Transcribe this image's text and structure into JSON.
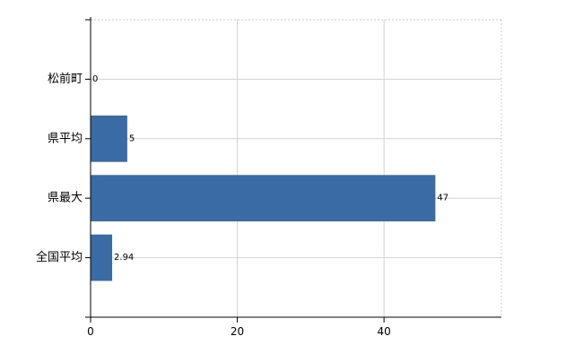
{
  "chart_data": {
    "type": "bar",
    "orientation": "horizontal",
    "categories": [
      "松前町",
      "県平均",
      "県最大",
      "全国平均"
    ],
    "values": [
      0,
      5,
      47,
      2.94
    ],
    "data_labels": [
      "0",
      "5",
      "47",
      "2.94"
    ],
    "title": "",
    "xlabel": "",
    "ylabel": "",
    "xlim": [
      0,
      56
    ],
    "xticks": [
      0,
      20,
      40
    ],
    "grid": true,
    "legend": "none",
    "bar_color": "#3a6ba5"
  }
}
